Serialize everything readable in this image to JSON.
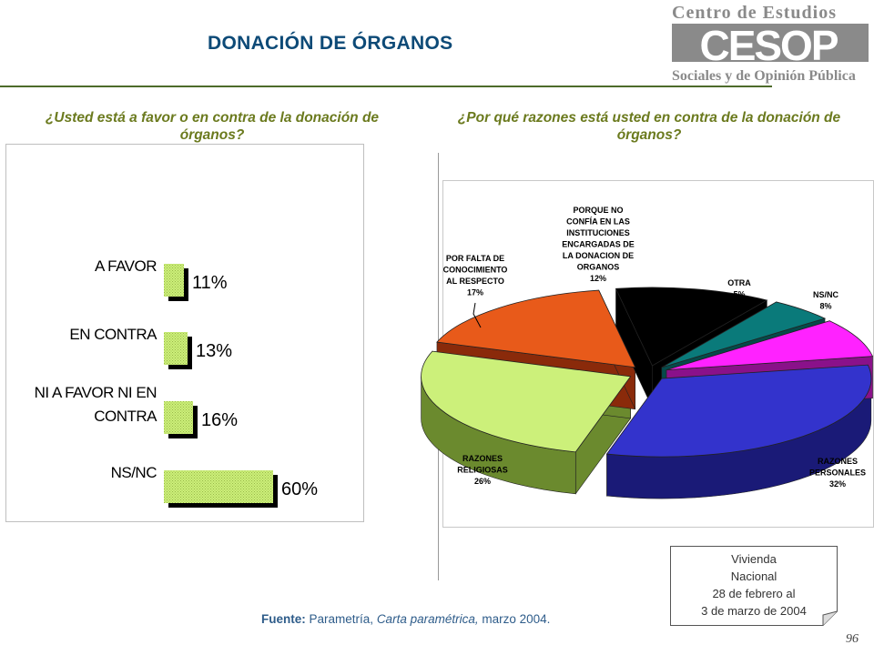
{
  "title": "DONACIÓN DE ÓRGANOS",
  "logo": {
    "top_text": "Centro de Estudios",
    "big_text": "CESOP",
    "bottom_text": "Sociales y de Opinión Pública",
    "colors": {
      "gray": "#8a8a8a",
      "green": "#4d6b2a"
    }
  },
  "questions": {
    "left": "¿Usted está a favor o en contra de la donación de órganos?",
    "right": "¿Por qué razones está usted en contra de la donación de órganos?"
  },
  "chart_data": [
    {
      "type": "bar",
      "orientation": "horizontal",
      "categories": [
        "A FAVOR",
        "EN CONTRA",
        "NI A FAVOR NI EN CONTRA",
        "NS/NC"
      ],
      "category_lines": [
        [
          "A FAVOR"
        ],
        [
          "EN CONTRA"
        ],
        [
          "NI A FAVOR NI EN",
          "CONTRA"
        ],
        [
          "NS/NC"
        ]
      ],
      "values": [
        11,
        13,
        16,
        60
      ],
      "value_labels": [
        "11%",
        "13%",
        "16%",
        "60%"
      ],
      "xlim": [
        0,
        60
      ],
      "bar_color": "#ccf07a",
      "shadow_color": "#000000",
      "legend": "none",
      "grid": false
    },
    {
      "type": "pie",
      "style": "3d-exploded",
      "slices": [
        {
          "label_lines": [
            "RAZONES",
            "PERSONALES"
          ],
          "label": "RAZONES PERSONALES",
          "value": 32,
          "value_label": "32%",
          "color": "#3333cc",
          "side": "#1a1a77"
        },
        {
          "label_lines": [
            "RAZONES",
            "RELIGIOSAS"
          ],
          "label": "RAZONES RELIGIOSAS",
          "value": 26,
          "value_label": "26%",
          "color": "#ccf07a",
          "side": "#6b8a2e"
        },
        {
          "label_lines": [
            "POR FALTA DE",
            "CONOCIMIENTO",
            "AL RESPECTO"
          ],
          "label": "POR FALTA DE CONOCIMIENTO AL RESPECTO",
          "value": 17,
          "value_label": "17%",
          "color": "#e85a1a",
          "side": "#8a2a0a"
        },
        {
          "label_lines": [
            "PORQUE NO",
            "CONFÍA EN LAS",
            "INSTITUCIONES",
            "ENCARGADAS DE",
            "LA DONACION DE",
            "ORGANOS"
          ],
          "label": "PORQUE NO CONFÍA EN LAS INSTITUCIONES ENCARGADAS DE LA DONACION DE ORGANOS",
          "value": 12,
          "value_label": "12%",
          "color": "#000000",
          "side": "#000000"
        },
        {
          "label_lines": [
            "OTRA"
          ],
          "label": "OTRA",
          "value": 5,
          "value_label": "5%",
          "color": "#0a7a7a",
          "side": "#054a4a"
        },
        {
          "label_lines": [
            "NS/NC"
          ],
          "label": "NS/NC",
          "value": 8,
          "value_label": "8%",
          "color": "#ff22ff",
          "side": "#8a118a"
        }
      ],
      "legend": "none"
    }
  ],
  "note": {
    "lines": [
      "Vivienda",
      "Nacional",
      "28 de febrero al",
      "3 de marzo de 2004"
    ]
  },
  "source": {
    "label": "Fuente:",
    "publisher": "Parametría,",
    "work": "Carta paramétrica,",
    "date": "marzo 2004."
  },
  "page_number": "96"
}
